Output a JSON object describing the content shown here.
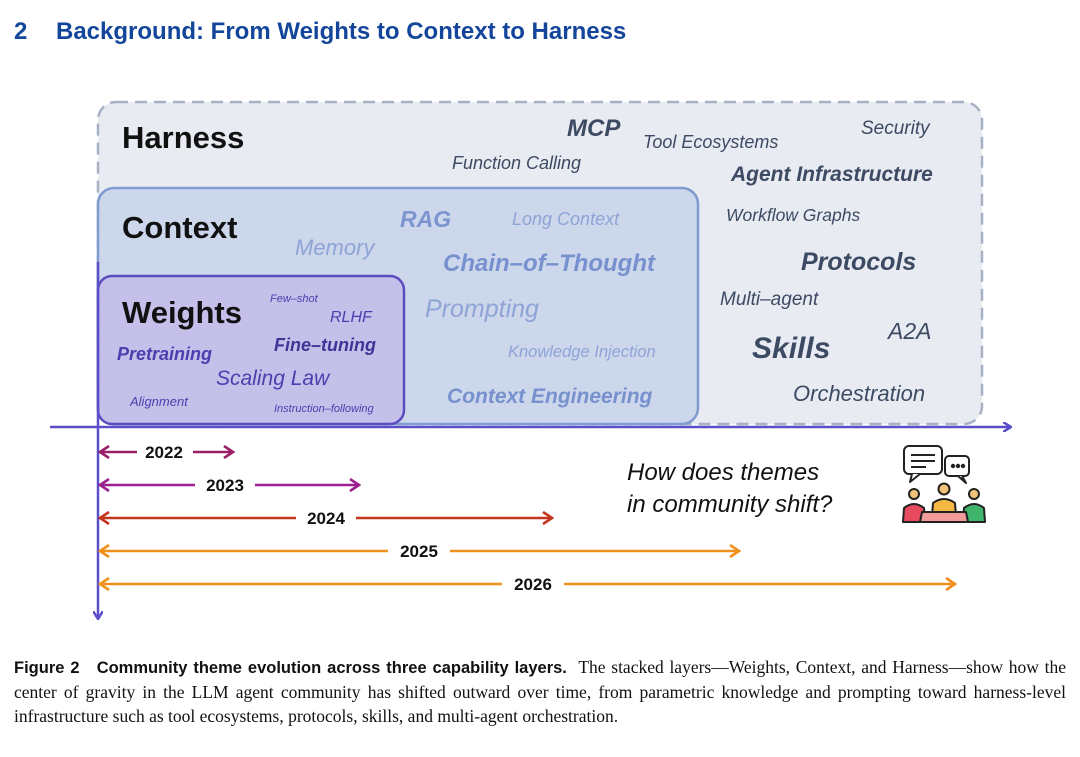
{
  "section": {
    "number": "2",
    "title": "Background: From Weights to Context to Harness"
  },
  "figure": {
    "layers": {
      "harness": "Harness",
      "context": "Context",
      "weights": "Weights"
    },
    "harness_terms": {
      "mcp": "MCP",
      "tool_ecosystems": "Tool Ecosystems",
      "security": "Security",
      "function_calling": "Function Calling",
      "agent_infrastructure": "Agent Infrastructure",
      "workflow_graphs": "Workflow Graphs",
      "protocols": "Protocols",
      "multi_agent": "Multi–agent",
      "a2a": "A2A",
      "skills": "Skills",
      "orchestration": "Orchestration"
    },
    "context_terms": {
      "rag": "RAG",
      "long_context": "Long Context",
      "memory": "Memory",
      "chain_of_thought": "Chain–of–Thought",
      "prompting": "Prompting",
      "knowledge_injection": "Knowledge Injection",
      "context_engineering": "Context Engineering"
    },
    "weights_terms": {
      "few_shot": "Few–shot",
      "rlhf": "RLHF",
      "pretraining": "Pretraining",
      "fine_tuning": "Fine–tuning",
      "scaling_law": "Scaling Law",
      "alignment": "Alignment",
      "instruction_following": "Instruction–following"
    },
    "years": [
      "2022",
      "2023",
      "2024",
      "2025",
      "2026"
    ],
    "question_line1": "How does themes",
    "question_line2": "in community shift?",
    "icon": "community-discussion-icon",
    "colors": {
      "harness_fill": "#e8ebf1",
      "harness_border": "#a7b1c4",
      "context_fill": "#ccd7ec",
      "context_border": "#7f9bd0",
      "weights_fill": "#c4c0ea",
      "weights_border": "#5b4cbf",
      "axis": "#5a4fc9",
      "year_2022": "#9b1f67",
      "year_2023": "#9b1f8f",
      "year_2024": "#c2361e",
      "year_2025": "#ef8f1c",
      "year_2026": "#ef8f1c"
    }
  },
  "caption": {
    "label": "Figure 2",
    "heading": "Community theme evolution across three capability layers.",
    "text": "The stacked layers—Weights, Context, and Harness—show how the center of gravity in the LLM agent community has shifted outward over time, from parametric knowledge and prompting toward harness-level infrastructure such as tool ecosystems, protocols, skills, and multi-agent orchestration."
  }
}
